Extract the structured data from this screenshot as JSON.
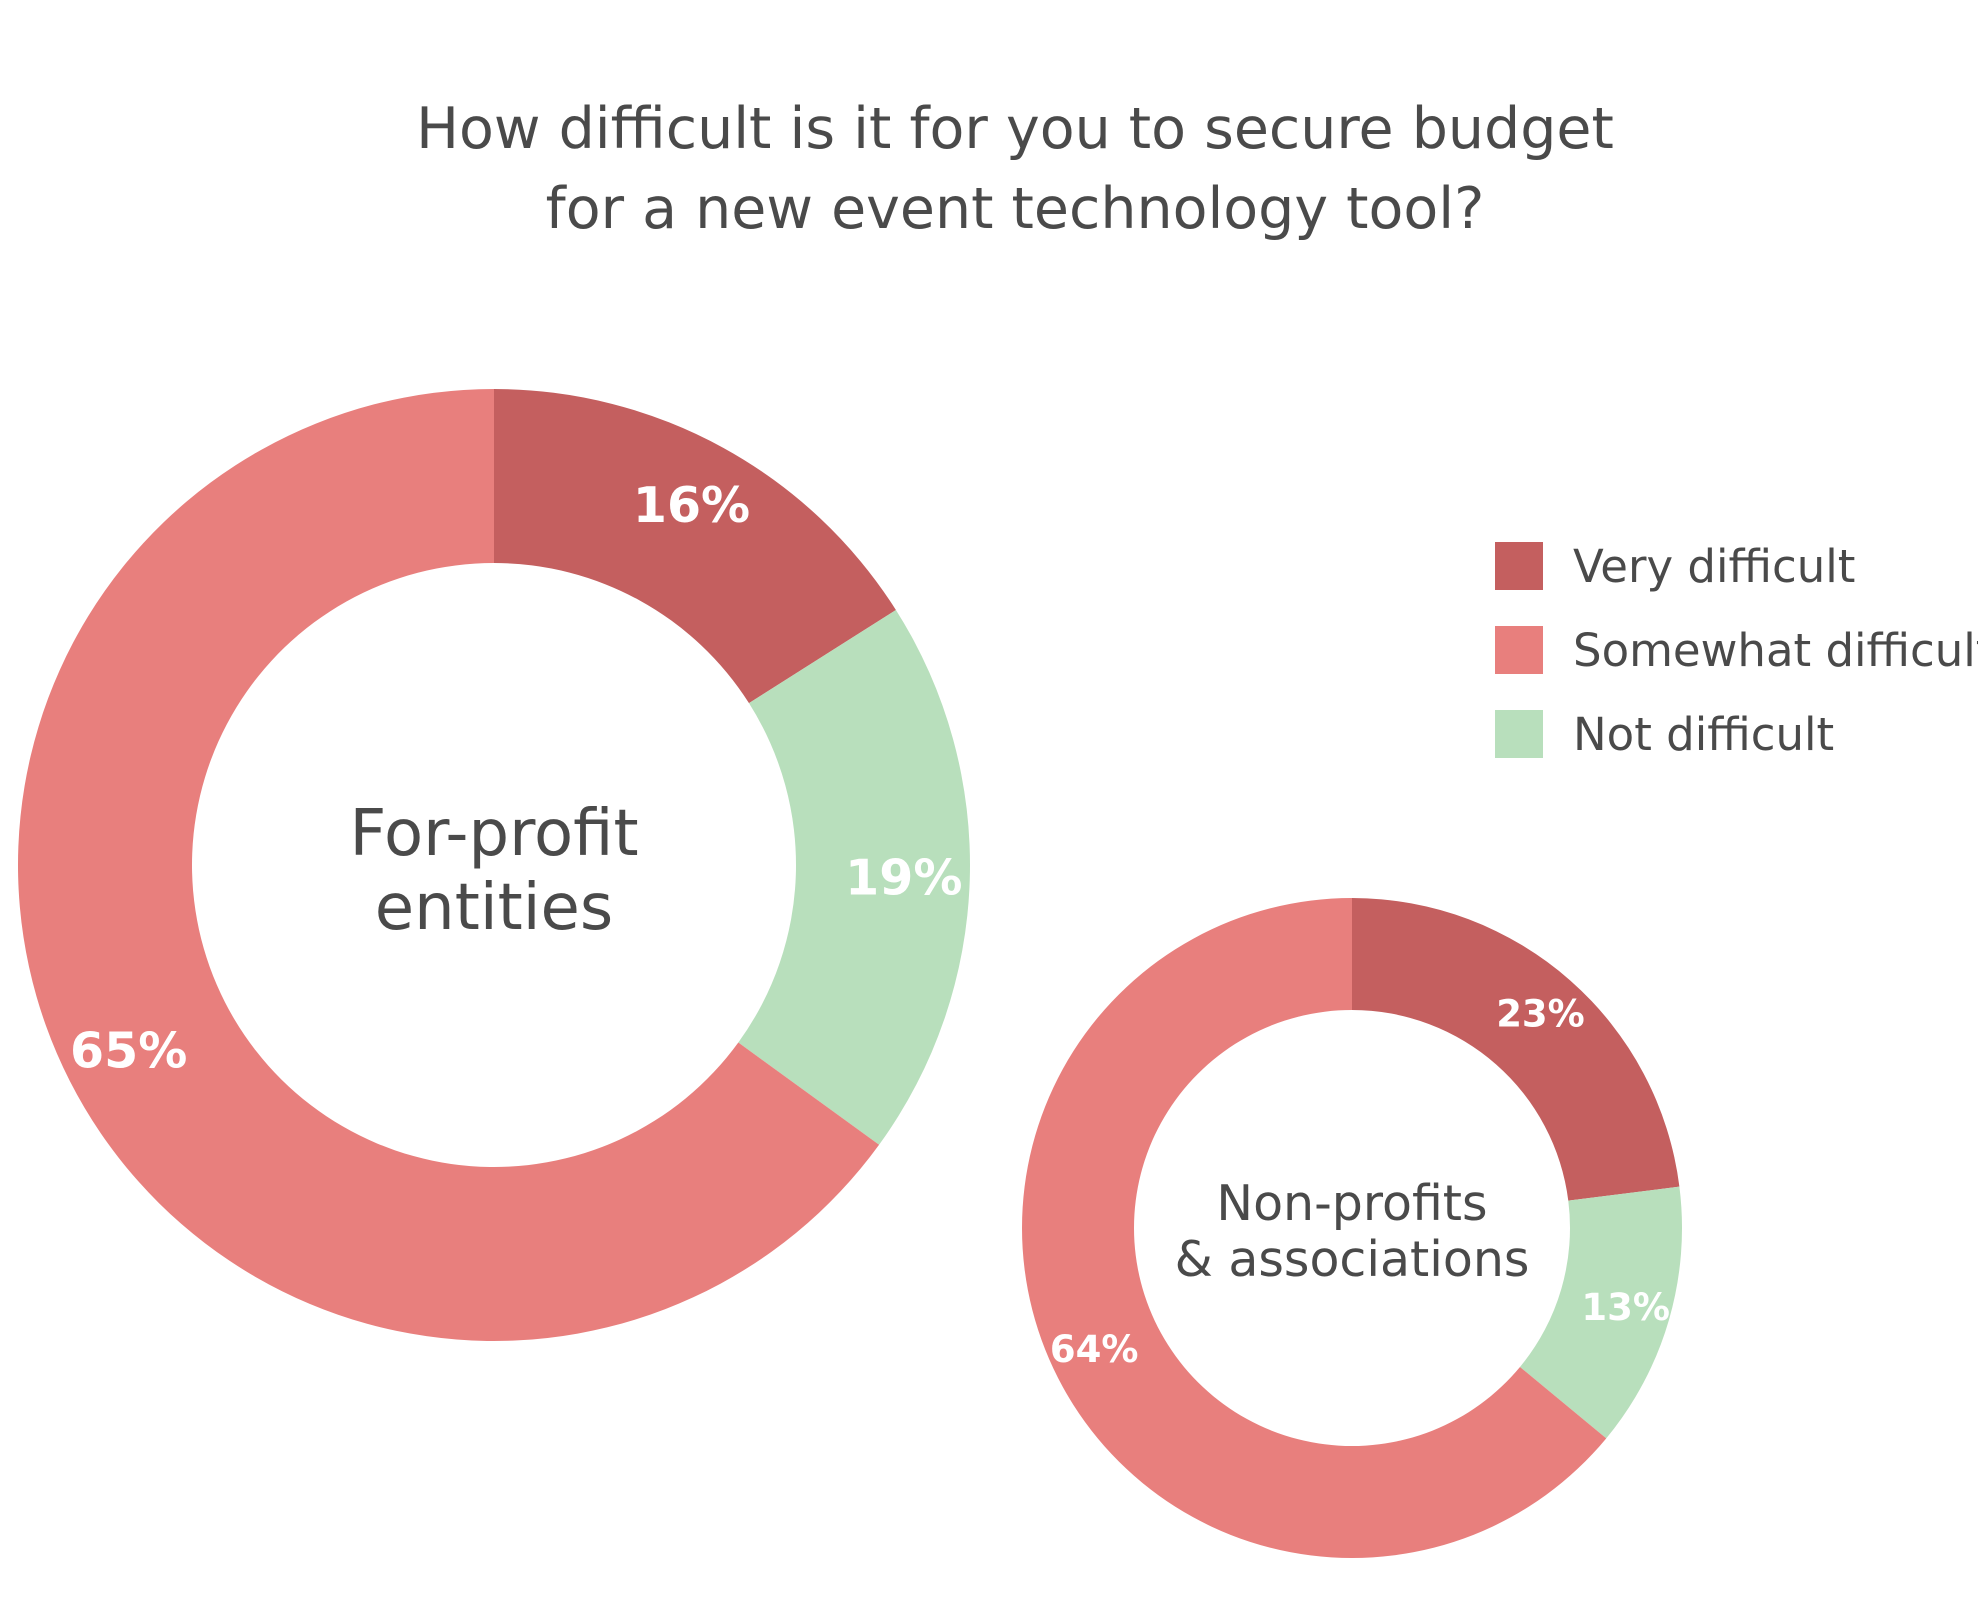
{
  "chart_data": {
    "type": "pie",
    "title": [
      "How difficult is it for you to secure budget",
      "for a new event technology tool?"
    ],
    "legend_position": "right",
    "categories": [
      "Very difficult",
      "Somewhat difficult",
      "Not difficult"
    ],
    "colors": {
      "Very difficult": "#c45f5f",
      "Somewhat difficult": "#e87f7d",
      "Not difficult": "#b8dfbc"
    },
    "charts": [
      {
        "center_label": [
          "For-profit",
          "entities"
        ],
        "slices": [
          {
            "category": "Very difficult",
            "value": 16,
            "label": "16%"
          },
          {
            "category": "Not difficult",
            "value": 19,
            "label": "19%"
          },
          {
            "category": "Somewhat difficult",
            "value": 65,
            "label": "65%"
          }
        ]
      },
      {
        "center_label": [
          "Non-profits",
          "& associations"
        ],
        "slices": [
          {
            "category": "Very difficult",
            "value": 23,
            "label": "23%"
          },
          {
            "category": "Not difficult",
            "value": 13,
            "label": "13%"
          },
          {
            "category": "Somewhat difficult",
            "value": 64,
            "label": "64%"
          }
        ]
      }
    ]
  }
}
